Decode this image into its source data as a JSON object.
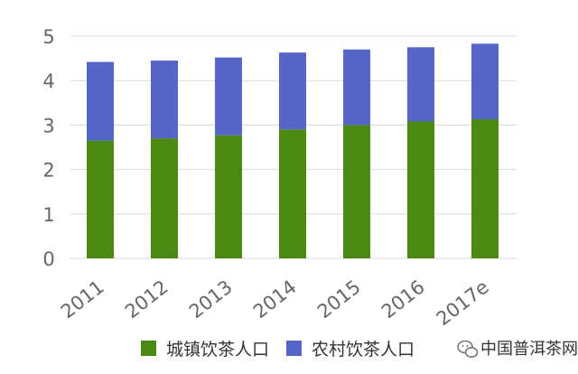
{
  "chart_data": {
    "type": "bar",
    "stacked": true,
    "categories": [
      "2011",
      "2012",
      "2013",
      "2014",
      "2015",
      "2016",
      "2017e"
    ],
    "series": [
      {
        "name": "城镇饮茶人口",
        "color": "#4a8a12",
        "values": [
          2.65,
          2.7,
          2.77,
          2.9,
          3.0,
          3.08,
          3.13
        ]
      },
      {
        "name": "农村饮茶人口",
        "color": "#5566c8",
        "values": [
          1.77,
          1.75,
          1.75,
          1.73,
          1.7,
          1.67,
          1.7
        ]
      }
    ],
    "ylim": [
      0,
      5
    ],
    "yticks": [
      "0",
      "1",
      "2",
      "3",
      "4",
      "5"
    ],
    "grid": true,
    "legend": "bottom"
  },
  "watermark": {
    "text": "中国普洱茶网",
    "icon": "wechat-icon"
  }
}
